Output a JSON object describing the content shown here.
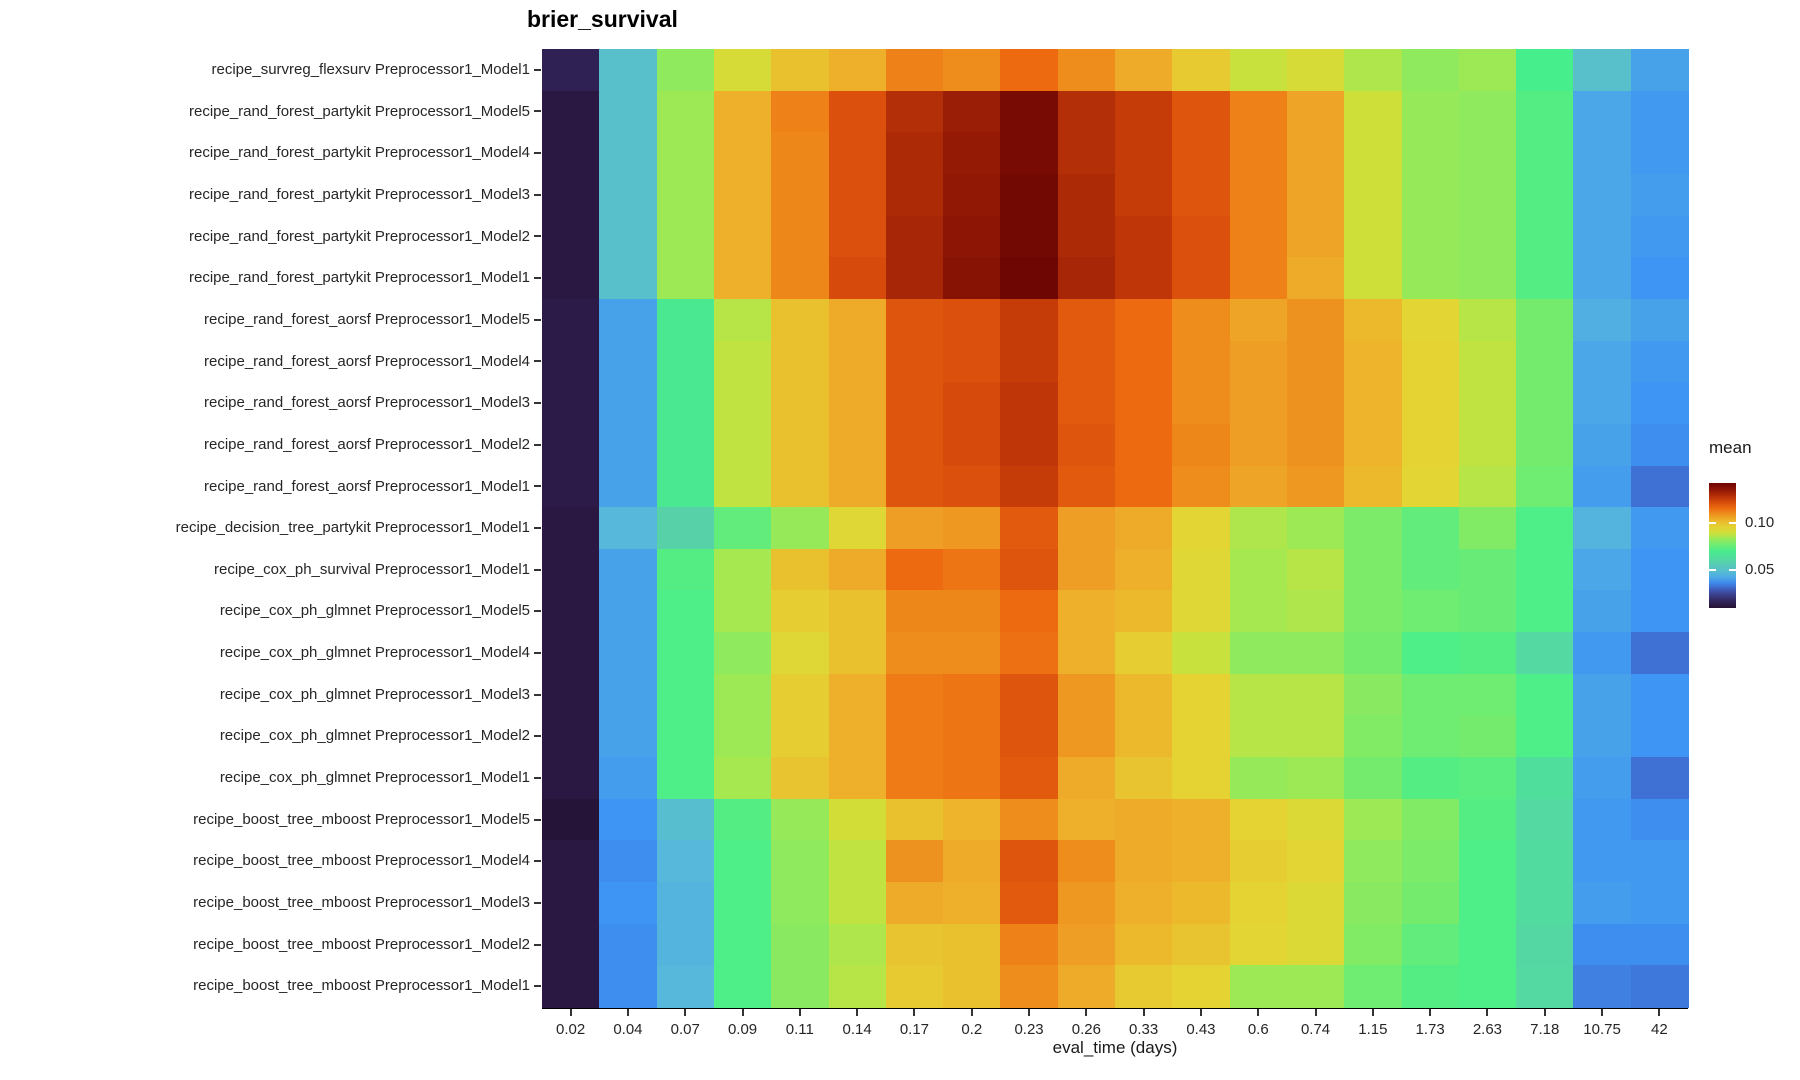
{
  "chart_data": {
    "type": "heatmap",
    "title": "brier_survival",
    "xlabel": "eval_time (days)",
    "ylabel": "",
    "legend_title": "mean",
    "legend_position": "right",
    "grid": false,
    "x_categories": [
      "0.02",
      "0.04",
      "0.07",
      "0.09",
      "0.11",
      "0.14",
      "0.17",
      "0.2",
      "0.23",
      "0.26",
      "0.33",
      "0.43",
      "0.6",
      "0.74",
      "1.15",
      "1.73",
      "2.63",
      "7.18",
      "10.75",
      "42"
    ],
    "color_scale": {
      "palette": "turbo",
      "domain": [
        0.01,
        0.1425
      ],
      "legend_ticks": [
        {
          "value": 0.1,
          "label": "0.10"
        },
        {
          "value": 0.05,
          "label": "0.05"
        }
      ]
    },
    "series": [
      {
        "name": "recipe_survreg_flexsurv Preprocessor1_Model1",
        "values": [
          0.016,
          0.05,
          0.082,
          0.092,
          0.1,
          0.104,
          0.112,
          0.11,
          0.116,
          0.11,
          0.105,
          0.098,
          0.089,
          0.092,
          0.086,
          0.082,
          0.084,
          0.071,
          0.05,
          0.041
        ]
      },
      {
        "name": "recipe_rand_forest_partykit Preprocessor1_Model5",
        "values": [
          0.013,
          0.05,
          0.084,
          0.104,
          0.112,
          0.121,
          0.129,
          0.133,
          0.14,
          0.129,
          0.126,
          0.12,
          0.112,
          0.106,
          0.09,
          0.083,
          0.082,
          0.073,
          0.042,
          0.039
        ]
      },
      {
        "name": "recipe_rand_forest_partykit Preprocessor1_Model4",
        "values": [
          0.013,
          0.05,
          0.084,
          0.104,
          0.111,
          0.121,
          0.13,
          0.134,
          0.14,
          0.129,
          0.126,
          0.12,
          0.112,
          0.106,
          0.09,
          0.083,
          0.082,
          0.073,
          0.042,
          0.039
        ]
      },
      {
        "name": "recipe_rand_forest_partykit Preprocessor1_Model3",
        "values": [
          0.013,
          0.05,
          0.084,
          0.104,
          0.111,
          0.121,
          0.13,
          0.135,
          0.141,
          0.13,
          0.126,
          0.12,
          0.112,
          0.106,
          0.09,
          0.083,
          0.082,
          0.073,
          0.042,
          0.04
        ]
      },
      {
        "name": "recipe_rand_forest_partykit Preprocessor1_Model2",
        "values": [
          0.013,
          0.05,
          0.084,
          0.104,
          0.111,
          0.121,
          0.131,
          0.136,
          0.141,
          0.13,
          0.127,
          0.121,
          0.112,
          0.106,
          0.09,
          0.083,
          0.082,
          0.073,
          0.042,
          0.039
        ]
      },
      {
        "name": "recipe_rand_forest_partykit Preprocessor1_Model1",
        "values": [
          0.013,
          0.05,
          0.084,
          0.104,
          0.111,
          0.122,
          0.131,
          0.137,
          0.142,
          0.131,
          0.127,
          0.121,
          0.112,
          0.105,
          0.09,
          0.083,
          0.082,
          0.073,
          0.042,
          0.038
        ]
      },
      {
        "name": "recipe_rand_forest_aorsf Preprocessor1_Model5",
        "values": [
          0.014,
          0.041,
          0.069,
          0.087,
          0.1,
          0.105,
          0.12,
          0.121,
          0.126,
          0.119,
          0.116,
          0.11,
          0.106,
          0.109,
          0.102,
          0.095,
          0.087,
          0.078,
          0.044,
          0.041
        ]
      },
      {
        "name": "recipe_rand_forest_aorsf Preprocessor1_Model4",
        "values": [
          0.014,
          0.041,
          0.069,
          0.088,
          0.1,
          0.105,
          0.12,
          0.121,
          0.126,
          0.119,
          0.116,
          0.11,
          0.107,
          0.109,
          0.103,
          0.096,
          0.088,
          0.078,
          0.042,
          0.039
        ]
      },
      {
        "name": "recipe_rand_forest_aorsf Preprocessor1_Model3",
        "values": [
          0.014,
          0.041,
          0.069,
          0.088,
          0.1,
          0.105,
          0.12,
          0.122,
          0.127,
          0.119,
          0.116,
          0.11,
          0.107,
          0.109,
          0.103,
          0.096,
          0.088,
          0.078,
          0.042,
          0.038
        ]
      },
      {
        "name": "recipe_rand_forest_aorsf Preprocessor1_Model2",
        "values": [
          0.014,
          0.041,
          0.069,
          0.088,
          0.1,
          0.105,
          0.12,
          0.122,
          0.127,
          0.12,
          0.116,
          0.111,
          0.107,
          0.109,
          0.103,
          0.096,
          0.088,
          0.078,
          0.041,
          0.037
        ]
      },
      {
        "name": "recipe_rand_forest_aorsf Preprocessor1_Model1",
        "values": [
          0.014,
          0.041,
          0.069,
          0.088,
          0.1,
          0.105,
          0.12,
          0.121,
          0.126,
          0.119,
          0.116,
          0.11,
          0.106,
          0.108,
          0.102,
          0.095,
          0.087,
          0.077,
          0.04,
          0.033
        ]
      },
      {
        "name": "recipe_decision_tree_partykit Preprocessor1_Model1",
        "values": [
          0.013,
          0.046,
          0.059,
          0.075,
          0.083,
          0.094,
          0.107,
          0.108,
          0.119,
          0.107,
          0.105,
          0.095,
          0.086,
          0.084,
          0.079,
          0.075,
          0.08,
          0.072,
          0.045,
          0.039
        ]
      },
      {
        "name": "recipe_cox_ph_survival Preprocessor1_Model1",
        "values": [
          0.013,
          0.041,
          0.073,
          0.085,
          0.1,
          0.105,
          0.116,
          0.114,
          0.12,
          0.107,
          0.104,
          0.094,
          0.085,
          0.087,
          0.079,
          0.075,
          0.076,
          0.072,
          0.042,
          0.038
        ]
      },
      {
        "name": "recipe_cox_ph_glmnet Preprocessor1_Model5",
        "values": [
          0.013,
          0.041,
          0.072,
          0.085,
          0.097,
          0.1,
          0.111,
          0.111,
          0.116,
          0.104,
          0.102,
          0.094,
          0.085,
          0.086,
          0.079,
          0.077,
          0.076,
          0.072,
          0.041,
          0.038
        ]
      },
      {
        "name": "recipe_cox_ph_glmnet Preprocessor1_Model4",
        "values": [
          0.013,
          0.041,
          0.072,
          0.082,
          0.094,
          0.1,
          0.11,
          0.11,
          0.115,
          0.104,
          0.097,
          0.089,
          0.082,
          0.082,
          0.078,
          0.072,
          0.073,
          0.062,
          0.039,
          0.033
        ]
      },
      {
        "name": "recipe_cox_ph_glmnet Preprocessor1_Model3",
        "values": [
          0.013,
          0.041,
          0.072,
          0.084,
          0.097,
          0.104,
          0.113,
          0.114,
          0.12,
          0.108,
          0.102,
          0.096,
          0.087,
          0.087,
          0.081,
          0.077,
          0.077,
          0.072,
          0.041,
          0.038
        ]
      },
      {
        "name": "recipe_cox_ph_glmnet Preprocessor1_Model2",
        "values": [
          0.013,
          0.041,
          0.072,
          0.084,
          0.097,
          0.104,
          0.113,
          0.114,
          0.12,
          0.108,
          0.102,
          0.096,
          0.087,
          0.087,
          0.08,
          0.077,
          0.078,
          0.072,
          0.041,
          0.038
        ]
      },
      {
        "name": "recipe_cox_ph_glmnet Preprocessor1_Model1",
        "values": [
          0.013,
          0.04,
          0.072,
          0.085,
          0.099,
          0.104,
          0.113,
          0.114,
          0.119,
          0.105,
          0.099,
          0.096,
          0.083,
          0.084,
          0.078,
          0.073,
          0.074,
          0.064,
          0.04,
          0.033
        ]
      },
      {
        "name": "recipe_boost_tree_mboost Preprocessor1_Model5",
        "values": [
          0.011,
          0.038,
          0.049,
          0.073,
          0.083,
          0.091,
          0.1,
          0.103,
          0.11,
          0.104,
          0.105,
          0.104,
          0.096,
          0.093,
          0.084,
          0.08,
          0.073,
          0.062,
          0.039,
          0.037
        ]
      },
      {
        "name": "recipe_boost_tree_mboost Preprocessor1_Model4",
        "values": [
          0.013,
          0.037,
          0.046,
          0.072,
          0.082,
          0.088,
          0.109,
          0.105,
          0.12,
          0.11,
          0.105,
          0.104,
          0.097,
          0.095,
          0.082,
          0.079,
          0.072,
          0.063,
          0.039,
          0.039
        ]
      },
      {
        "name": "recipe_boost_tree_mboost Preprocessor1_Model3",
        "values": [
          0.013,
          0.038,
          0.045,
          0.072,
          0.082,
          0.088,
          0.105,
          0.104,
          0.119,
          0.108,
          0.104,
          0.102,
          0.096,
          0.093,
          0.081,
          0.078,
          0.072,
          0.063,
          0.04,
          0.039
        ]
      },
      {
        "name": "recipe_boost_tree_mboost Preprocessor1_Model2",
        "values": [
          0.013,
          0.037,
          0.045,
          0.072,
          0.081,
          0.086,
          0.099,
          0.1,
          0.112,
          0.107,
          0.102,
          0.099,
          0.095,
          0.093,
          0.08,
          0.075,
          0.072,
          0.061,
          0.037,
          0.037
        ]
      },
      {
        "name": "recipe_boost_tree_mboost Preprocessor1_Model1",
        "values": [
          0.013,
          0.037,
          0.046,
          0.072,
          0.081,
          0.087,
          0.098,
          0.1,
          0.11,
          0.105,
          0.098,
          0.096,
          0.084,
          0.084,
          0.077,
          0.073,
          0.072,
          0.062,
          0.035,
          0.034
        ]
      }
    ]
  }
}
